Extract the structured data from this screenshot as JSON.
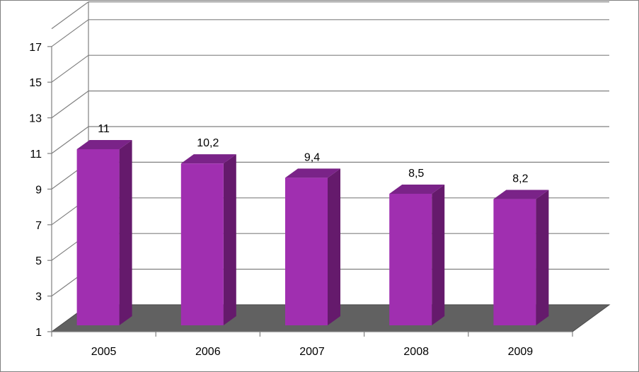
{
  "chart_data": {
    "type": "bar",
    "categories": [
      "2005",
      "2006",
      "2007",
      "2008",
      "2009"
    ],
    "values": [
      11,
      10.2,
      9.4,
      8.5,
      8.2
    ],
    "data_labels": [
      "11",
      "10,2",
      "9,4",
      "8,5",
      "8,2"
    ],
    "yticks": [
      1,
      3,
      5,
      7,
      9,
      11,
      13,
      15,
      17
    ],
    "ylim": [
      1,
      18
    ],
    "grid": true,
    "legend": "none",
    "title": "",
    "xlabel": "",
    "ylabel": "",
    "colors": {
      "bar_front": "#A02FB0",
      "bar_side": "#651A6C",
      "bar_top": "#7A2388",
      "floor": "#616161",
      "grid": "#808080"
    }
  }
}
